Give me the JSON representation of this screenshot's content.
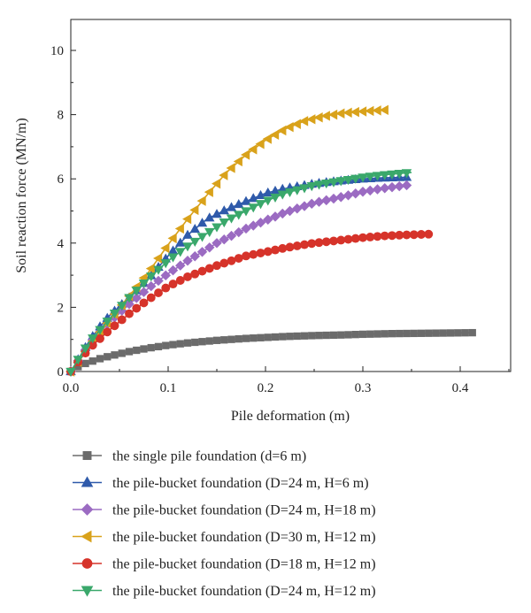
{
  "chart_data": {
    "type": "line",
    "xlabel": "Pile deformation (m)",
    "ylabel": "Soil reaction force (MN/m)",
    "xlim": [
      0,
      0.45
    ],
    "ylim": [
      0,
      11
    ],
    "xticks": [
      0.0,
      0.1,
      0.2,
      0.3,
      0.4
    ],
    "xtick_labels": [
      "0.0",
      "0.1",
      "0.2",
      "0.3",
      "0.4"
    ],
    "yticks": [
      0,
      2,
      4,
      6,
      8,
      10
    ],
    "ytick_labels": [
      "0",
      "2",
      "4",
      "6",
      "8",
      "10"
    ],
    "grid": false,
    "legend_position": "below",
    "series": [
      {
        "name": "the single pile foundation (d=6 m)",
        "marker": "square",
        "color": "#6b6b6b",
        "x": [
          0,
          0.01,
          0.02,
          0.03,
          0.04,
          0.05,
          0.06,
          0.08,
          0.1,
          0.12,
          0.15,
          0.18,
          0.2,
          0.22,
          0.25,
          0.28,
          0.3,
          0.33,
          0.36,
          0.39,
          0.415
        ],
        "y": [
          0,
          0.2,
          0.3,
          0.4,
          0.48,
          0.55,
          0.62,
          0.73,
          0.82,
          0.89,
          0.97,
          1.03,
          1.06,
          1.09,
          1.12,
          1.14,
          1.16,
          1.18,
          1.19,
          1.2,
          1.21
        ]
      },
      {
        "name": "the pile-bucket foundation (D=24 m, H=6 m)",
        "marker": "triangle-up",
        "color": "#2f5aaa",
        "x": [
          0,
          0.01,
          0.02,
          0.03,
          0.04,
          0.06,
          0.08,
          0.1,
          0.12,
          0.14,
          0.16,
          0.18,
          0.2,
          0.22,
          0.25,
          0.28,
          0.3,
          0.32,
          0.345
        ],
        "y": [
          0,
          0.5,
          1.0,
          1.4,
          1.75,
          2.3,
          2.9,
          3.6,
          4.25,
          4.75,
          5.05,
          5.3,
          5.55,
          5.7,
          5.85,
          5.95,
          6.0,
          6.03,
          6.05
        ]
      },
      {
        "name": "the pile-bucket foundation (D=24 m, H=18 m)",
        "marker": "diamond",
        "color": "#9b6bc2",
        "x": [
          0,
          0.01,
          0.02,
          0.04,
          0.06,
          0.08,
          0.1,
          0.12,
          0.15,
          0.18,
          0.2,
          0.22,
          0.25,
          0.28,
          0.3,
          0.32,
          0.345
        ],
        "y": [
          0,
          0.45,
          0.9,
          1.55,
          2.1,
          2.6,
          3.05,
          3.45,
          4.0,
          4.45,
          4.7,
          4.95,
          5.25,
          5.45,
          5.6,
          5.7,
          5.8
        ]
      },
      {
        "name": "the pile-bucket foundation (D=30 m, H=12 m)",
        "marker": "triangle-left",
        "color": "#d9a21b",
        "x": [
          0,
          0.01,
          0.02,
          0.04,
          0.06,
          0.08,
          0.1,
          0.12,
          0.14,
          0.16,
          0.18,
          0.2,
          0.22,
          0.24,
          0.26,
          0.28,
          0.3,
          0.325
        ],
        "y": [
          0,
          0.4,
          0.85,
          1.6,
          2.35,
          3.1,
          3.95,
          4.75,
          5.5,
          6.2,
          6.75,
          7.2,
          7.55,
          7.8,
          7.95,
          8.05,
          8.1,
          8.15
        ]
      },
      {
        "name": "the pile-bucket foundation (D=18 m, H=12 m)",
        "marker": "circle",
        "color": "#d6332a",
        "x": [
          0,
          0.01,
          0.02,
          0.04,
          0.06,
          0.08,
          0.1,
          0.12,
          0.15,
          0.18,
          0.2,
          0.22,
          0.25,
          0.28,
          0.3,
          0.32,
          0.34,
          0.37
        ],
        "y": [
          0,
          0.4,
          0.75,
          1.3,
          1.8,
          2.25,
          2.65,
          2.95,
          3.3,
          3.6,
          3.72,
          3.85,
          4.0,
          4.1,
          4.17,
          4.22,
          4.25,
          4.28
        ]
      },
      {
        "name": "the pile-bucket foundation (D=24 m, H=12 m)",
        "marker": "triangle-down",
        "color": "#3aa86b",
        "x": [
          0,
          0.01,
          0.02,
          0.04,
          0.06,
          0.08,
          0.1,
          0.12,
          0.14,
          0.16,
          0.18,
          0.2,
          0.22,
          0.25,
          0.28,
          0.3,
          0.32,
          0.35
        ],
        "y": [
          0,
          0.5,
          0.95,
          1.65,
          2.3,
          2.9,
          3.45,
          3.9,
          4.3,
          4.7,
          5.0,
          5.3,
          5.55,
          5.8,
          5.95,
          6.05,
          6.12,
          6.2
        ]
      }
    ]
  }
}
